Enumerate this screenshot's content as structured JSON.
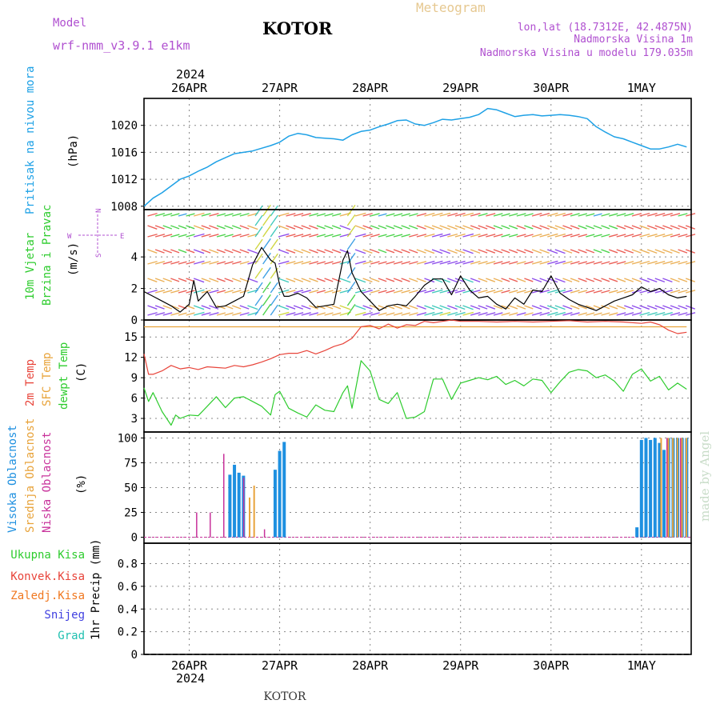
{
  "header": {
    "model_label": "Model",
    "model_name": "wrf-nmm_v3.9.1 e1km",
    "station": "KOTOR",
    "title": "Meteogram",
    "lonlat": "lon,lat (18.7312E, 42.4875N)",
    "altitude": "Nadmorska Visina 1m",
    "model_altitude": "Nadmorska Visina u modelu 179.035m",
    "year_top": "2024",
    "year_bottom": "2024",
    "footer_station": "KOTOR",
    "watermark": "made by Angel"
  },
  "colors": {
    "pressure": "#1ea1e6",
    "temp2m": "#e8443a",
    "sfc_temp": "#e8a33a",
    "dewpoint": "#2ecc2e",
    "cloud_high": "#1e90e0",
    "cloud_mid": "#e8a33a",
    "cloud_low": "#c8329b",
    "precip_total": "#2ecc2e",
    "precip_conv": "#e8443a",
    "precip_frozen": "#f07820",
    "precip_snow": "#4040e0",
    "precip_grad": "#20c0b0",
    "label_purple": "#b050d0",
    "label_tan": "#e6c890",
    "wind_speed_line": "#000000"
  },
  "chart_data": [
    {
      "type": "line",
      "id": "pressure",
      "ylabel_left": "Pritisak na nivou mora",
      "unit": "(hPa)",
      "x_ticks": [
        "26APR",
        "27APR",
        "28APR",
        "29APR",
        "30APR",
        "1MAY"
      ],
      "x_domain_days": [
        -0.5,
        5.55
      ],
      "ylim": [
        1007.5,
        1024
      ],
      "y_ticks": [
        1008,
        1012,
        1016,
        1020
      ],
      "series": [
        {
          "x": [
            -0.5,
            -0.4,
            -0.3,
            -0.2,
            -0.1,
            0,
            0.1,
            0.2,
            0.3,
            0.4,
            0.5,
            0.6,
            0.7,
            0.8,
            0.9,
            1.0,
            1.1,
            1.2,
            1.3,
            1.4,
            1.5,
            1.6,
            1.7,
            1.8,
            1.9,
            2.0,
            2.1,
            2.2,
            2.3,
            2.4,
            2.5,
            2.6,
            2.7,
            2.8,
            2.9,
            3.0,
            3.1,
            3.2,
            3.3,
            3.4,
            3.5,
            3.6,
            3.7,
            3.8,
            3.9,
            4.0,
            4.1,
            4.2,
            4.3,
            4.4,
            4.5,
            4.6,
            4.7,
            4.8,
            4.9,
            5.0,
            5.1,
            5.2,
            5.3,
            5.4,
            5.5
          ],
          "y": [
            1008.0,
            1009.2,
            1010.0,
            1011.0,
            1012.0,
            1012.5,
            1013.2,
            1013.8,
            1014.6,
            1015.2,
            1015.8,
            1016.0,
            1016.2,
            1016.6,
            1017.0,
            1017.5,
            1018.4,
            1018.8,
            1018.6,
            1018.2,
            1018.1,
            1018.0,
            1017.8,
            1018.6,
            1019.1,
            1019.3,
            1019.8,
            1020.2,
            1020.7,
            1020.8,
            1020.2,
            1020.0,
            1020.4,
            1020.9,
            1020.8,
            1021.0,
            1021.2,
            1021.6,
            1022.5,
            1022.3,
            1021.8,
            1021.3,
            1021.5,
            1021.6,
            1021.4,
            1021.5,
            1021.6,
            1021.5,
            1021.3,
            1021.0,
            1019.8,
            1019.0,
            1018.3,
            1018.0,
            1017.5,
            1017.0,
            1016.5,
            1016.5,
            1016.8,
            1017.2,
            1016.8
          ]
        }
      ]
    },
    {
      "type": "line",
      "id": "wind",
      "ylabel_left": [
        "10m Vjetar",
        "Brzina i Pravac"
      ],
      "unit": "(m/s)",
      "compass": {
        "n": "N",
        "w": "W",
        "e": "E",
        "s": "S"
      },
      "ylim": [
        0,
        7
      ],
      "y_ticks": [
        0,
        2,
        4
      ],
      "series": [
        {
          "name": "speed",
          "x": [
            -0.5,
            -0.4,
            -0.3,
            -0.2,
            -0.1,
            0,
            0.05,
            0.1,
            0.2,
            0.3,
            0.4,
            0.5,
            0.6,
            0.7,
            0.8,
            0.9,
            0.95,
            1.0,
            1.05,
            1.1,
            1.2,
            1.3,
            1.4,
            1.5,
            1.6,
            1.7,
            1.75,
            1.8,
            1.9,
            2.0,
            2.1,
            2.2,
            2.3,
            2.4,
            2.5,
            2.6,
            2.7,
            2.8,
            2.9,
            3.0,
            3.1,
            3.2,
            3.3,
            3.4,
            3.5,
            3.6,
            3.7,
            3.8,
            3.9,
            4.0,
            4.1,
            4.2,
            4.3,
            4.4,
            4.5,
            4.6,
            4.7,
            4.8,
            4.9,
            5.0,
            5.1,
            5.2,
            5.3,
            5.4,
            5.5
          ],
          "y": [
            1.8,
            1.5,
            1.2,
            0.9,
            0.5,
            1.0,
            2.5,
            1.2,
            1.8,
            0.8,
            0.9,
            1.2,
            1.5,
            3.5,
            4.6,
            3.8,
            3.6,
            2.2,
            1.5,
            1.5,
            1.7,
            1.4,
            0.8,
            0.9,
            1.0,
            3.8,
            4.4,
            3.0,
            1.8,
            1.2,
            0.6,
            0.9,
            1.0,
            0.9,
            1.5,
            2.2,
            2.6,
            2.6,
            1.6,
            2.8,
            1.9,
            1.4,
            1.5,
            1.0,
            0.7,
            1.4,
            1.0,
            1.9,
            1.8,
            2.8,
            1.7,
            1.3,
            1.0,
            0.8,
            0.6,
            0.9,
            1.2,
            1.4,
            1.6,
            2.1,
            1.8,
            2.0,
            1.6,
            1.4,
            1.5
          ]
        }
      ]
    },
    {
      "type": "line",
      "id": "temperature",
      "ylabel_left": [
        "2m Temp",
        "SFC Temp",
        "dewpt Temp"
      ],
      "unit": "(C)",
      "ylim": [
        1,
        17.5
      ],
      "y_ticks": [
        3,
        6,
        9,
        12,
        15
      ],
      "series": [
        {
          "name": "2m Temp",
          "x": [
            -0.5,
            -0.45,
            -0.4,
            -0.3,
            -0.2,
            -0.1,
            0,
            0.1,
            0.2,
            0.3,
            0.4,
            0.5,
            0.6,
            0.7,
            0.8,
            0.9,
            1.0,
            1.1,
            1.2,
            1.3,
            1.4,
            1.5,
            1.6,
            1.7,
            1.8,
            1.9,
            2.0,
            2.1,
            2.2,
            2.3,
            2.4,
            2.5,
            2.6,
            2.7,
            2.8,
            2.9,
            3.0,
            3.2,
            3.4,
            3.6,
            3.8,
            4.0,
            4.2,
            4.4,
            4.6,
            4.8,
            5.0,
            5.1,
            5.2,
            5.3,
            5.4,
            5.5
          ],
          "y": [
            12.5,
            9.5,
            9.5,
            10.0,
            10.8,
            10.3,
            10.5,
            10.2,
            10.6,
            10.5,
            10.4,
            10.8,
            10.6,
            10.9,
            11.3,
            11.8,
            12.4,
            12.6,
            12.6,
            13.0,
            12.5,
            13.0,
            13.6,
            14.0,
            14.8,
            16.5,
            16.7,
            16.2,
            16.9,
            16.3,
            16.8,
            16.7,
            17.3,
            17.1,
            17.3,
            17.5,
            17.3,
            17.3,
            17.2,
            17.3,
            17.2,
            17.3,
            17.4,
            17.2,
            17.3,
            17.2,
            17.0,
            17.2,
            16.8,
            16.0,
            15.5,
            15.7
          ]
        },
        {
          "name": "SFC Temp",
          "x": [
            -0.5,
            5.5
          ],
          "y": [
            16.5,
            16.5
          ]
        },
        {
          "name": "dewpt Temp",
          "x": [
            -0.5,
            -0.45,
            -0.4,
            -0.3,
            -0.2,
            -0.15,
            -0.1,
            0,
            0.1,
            0.2,
            0.3,
            0.4,
            0.5,
            0.6,
            0.7,
            0.8,
            0.9,
            0.95,
            1.0,
            1.1,
            1.2,
            1.3,
            1.4,
            1.5,
            1.6,
            1.7,
            1.75,
            1.8,
            1.9,
            2.0,
            2.1,
            2.2,
            2.3,
            2.4,
            2.5,
            2.6,
            2.7,
            2.8,
            2.9,
            3.0,
            3.1,
            3.2,
            3.3,
            3.4,
            3.5,
            3.6,
            3.7,
            3.8,
            3.9,
            4.0,
            4.1,
            4.2,
            4.3,
            4.4,
            4.5,
            4.6,
            4.7,
            4.8,
            4.9,
            5.0,
            5.1,
            5.2,
            5.3,
            5.4,
            5.5
          ],
          "y": [
            7.5,
            5.5,
            6.8,
            4.0,
            2.0,
            3.5,
            3.0,
            3.5,
            3.4,
            4.8,
            6.2,
            4.6,
            6.0,
            6.2,
            5.5,
            4.8,
            3.5,
            6.5,
            7.0,
            4.5,
            3.8,
            3.2,
            5.0,
            4.2,
            4.0,
            6.8,
            7.8,
            4.5,
            11.5,
            10.0,
            5.8,
            5.2,
            6.8,
            3.0,
            3.2,
            4.0,
            8.8,
            8.8,
            5.8,
            8.2,
            8.6,
            9.0,
            8.7,
            9.2,
            8.0,
            8.6,
            7.8,
            8.8,
            8.6,
            6.8,
            8.4,
            9.8,
            10.2,
            10.0,
            9.0,
            9.4,
            8.5,
            7.0,
            9.5,
            10.3,
            8.5,
            9.2,
            7.2,
            8.2,
            7.3
          ]
        }
      ]
    },
    {
      "type": "bar",
      "id": "cloud",
      "ylabel_left": [
        "Visoka Oblacnost",
        "Srednja Oblacnost",
        "Niska Oblacnost"
      ],
      "unit": "(%)",
      "ylim": [
        -6,
        106
      ],
      "y_ticks": [
        0,
        25,
        50,
        75,
        100
      ],
      "series": [
        {
          "name": "Visoka Oblacnost",
          "x": [
            0.45,
            0.5,
            0.55,
            0.6,
            0.95,
            1.0,
            1.05,
            4.95,
            5.0,
            5.05,
            5.1,
            5.15,
            5.2,
            5.25,
            5.3,
            5.35,
            5.4,
            5.45,
            5.5
          ],
          "y": [
            63,
            73,
            65,
            62,
            68,
            87,
            96,
            10,
            98,
            100,
            98,
            100,
            95,
            88,
            100,
            100,
            100,
            100,
            100
          ]
        },
        {
          "name": "Srednja Oblacnost",
          "x": [
            0.65,
            0.7,
            5.2,
            5.28,
            5.33,
            5.38,
            5.43,
            5.48
          ],
          "y": [
            40,
            52,
            100,
            100,
            100,
            100,
            100,
            100
          ]
        },
        {
          "name": "Niska Oblacnost",
          "x": [
            0.1,
            0.25,
            0.4,
            0.62,
            0.85,
            5.3,
            5.45
          ],
          "y": [
            25,
            25,
            84,
            60,
            8,
            100,
            100
          ]
        }
      ]
    },
    {
      "type": "bar",
      "id": "precip",
      "ylabel_left": [
        "Ukupna Kisa",
        "Konvek.Kisa",
        "Zaledj.Kisa",
        "Snijeg",
        "Grad"
      ],
      "unit": "1hr Precip (mm)",
      "ylim": [
        0,
        0.98
      ],
      "y_ticks": [
        0,
        0.2,
        0.4,
        0.6,
        0.8
      ],
      "series": [
        {
          "name": "Ukupna Kisa",
          "x": [],
          "y": []
        }
      ]
    }
  ]
}
